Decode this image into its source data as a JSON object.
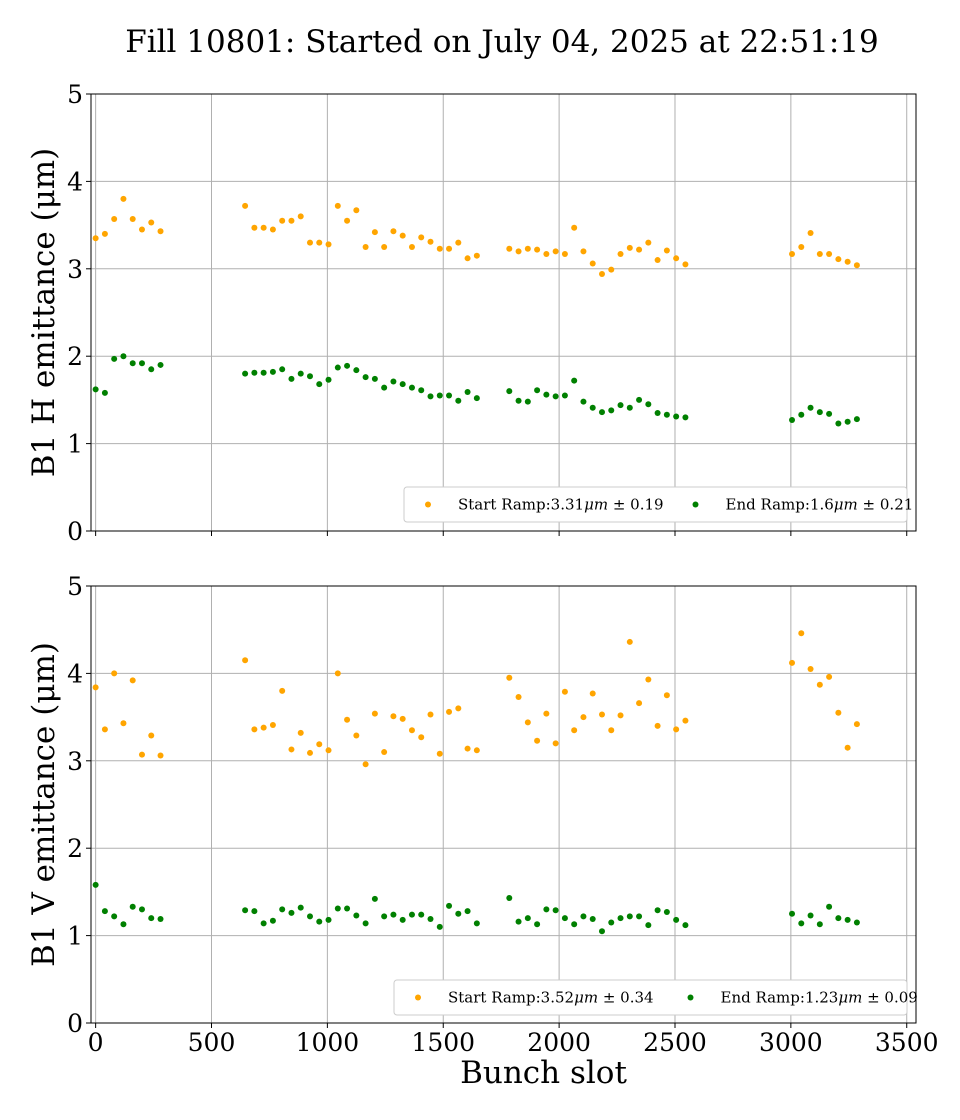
{
  "title": "Fill 10801: Started on July 04, 2025 at 22:51:19",
  "colors": {
    "start": "#ffa500",
    "end": "#008000"
  },
  "chart_data": [
    {
      "type": "scatter",
      "panel": "top",
      "ylabel": "B1 H emittance (μm)",
      "ylim": [
        0,
        5
      ],
      "xlim": [
        -20,
        3540
      ],
      "xticks": [
        0,
        500,
        1000,
        1500,
        2000,
        2500,
        3000,
        3500
      ],
      "yticks": [
        0,
        1,
        2,
        3,
        4,
        5
      ],
      "grid": true,
      "legend_position": "lower-right",
      "series": [
        {
          "name": "Start Ramp:3.31 μm ± 0.19",
          "legend_prefix": "Start Ramp:3.31 ",
          "legend_unit": "μm",
          "legend_suffix": " ± 0.19",
          "color": "#ffa500",
          "x": [
            0,
            40,
            80,
            120,
            160,
            200,
            240,
            280,
            645,
            685,
            725,
            765,
            805,
            845,
            885,
            925,
            965,
            1005,
            1045,
            1085,
            1125,
            1165,
            1205,
            1245,
            1285,
            1325,
            1365,
            1405,
            1445,
            1485,
            1525,
            1565,
            1605,
            1645,
            1785,
            1825,
            1865,
            1905,
            1945,
            1985,
            2025,
            2065,
            2105,
            2145,
            2185,
            2225,
            2265,
            2305,
            2345,
            2385,
            2425,
            2465,
            2505,
            2545,
            3005,
            3045,
            3085,
            3125,
            3165,
            3205,
            3245,
            3285
          ],
          "y": [
            3.35,
            3.4,
            3.57,
            3.8,
            3.57,
            3.45,
            3.53,
            3.43,
            3.72,
            3.47,
            3.47,
            3.45,
            3.55,
            3.55,
            3.6,
            3.3,
            3.3,
            3.28,
            3.72,
            3.55,
            3.67,
            3.25,
            3.42,
            3.25,
            3.43,
            3.38,
            3.25,
            3.36,
            3.31,
            3.23,
            3.23,
            3.3,
            3.12,
            3.15,
            3.23,
            3.2,
            3.23,
            3.22,
            3.17,
            3.2,
            3.17,
            3.47,
            3.2,
            3.06,
            2.94,
            2.99,
            3.17,
            3.24,
            3.22,
            3.3,
            3.1,
            3.21,
            3.12,
            3.05,
            3.17,
            3.25,
            3.41,
            3.17,
            3.17,
            3.11,
            3.08,
            3.04
          ]
        },
        {
          "name": "End Ramp:1.6 μm ± 0.21",
          "legend_prefix": "End Ramp:1.6 ",
          "legend_unit": "μm",
          "legend_suffix": " ± 0.21",
          "color": "#008000",
          "x": [
            0,
            40,
            80,
            120,
            160,
            200,
            240,
            280,
            645,
            685,
            725,
            765,
            805,
            845,
            885,
            925,
            965,
            1005,
            1045,
            1085,
            1125,
            1165,
            1205,
            1245,
            1285,
            1325,
            1365,
            1405,
            1445,
            1485,
            1525,
            1565,
            1605,
            1645,
            1785,
            1825,
            1865,
            1905,
            1945,
            1985,
            2025,
            2065,
            2105,
            2145,
            2185,
            2225,
            2265,
            2305,
            2345,
            2385,
            2425,
            2465,
            2505,
            2545,
            3005,
            3045,
            3085,
            3125,
            3165,
            3205,
            3245,
            3285
          ],
          "y": [
            1.62,
            1.58,
            1.97,
            2.0,
            1.92,
            1.92,
            1.85,
            1.9,
            1.8,
            1.81,
            1.81,
            1.82,
            1.85,
            1.74,
            1.8,
            1.77,
            1.68,
            1.73,
            1.87,
            1.89,
            1.84,
            1.76,
            1.74,
            1.64,
            1.71,
            1.68,
            1.64,
            1.61,
            1.54,
            1.55,
            1.55,
            1.49,
            1.59,
            1.52,
            1.6,
            1.49,
            1.48,
            1.61,
            1.56,
            1.54,
            1.55,
            1.72,
            1.48,
            1.41,
            1.36,
            1.38,
            1.44,
            1.41,
            1.5,
            1.45,
            1.35,
            1.33,
            1.31,
            1.3,
            1.27,
            1.33,
            1.41,
            1.36,
            1.34,
            1.23,
            1.25,
            1.28
          ]
        }
      ]
    },
    {
      "type": "scatter",
      "panel": "bottom",
      "ylabel": "B1 V emittance (μm)",
      "xlabel": "Bunch slot",
      "ylim": [
        0,
        5
      ],
      "xlim": [
        -20,
        3540
      ],
      "xticks": [
        0,
        500,
        1000,
        1500,
        2000,
        2500,
        3000,
        3500
      ],
      "yticks": [
        0,
        1,
        2,
        3,
        4,
        5
      ],
      "grid": true,
      "legend_position": "lower-right",
      "series": [
        {
          "name": "Start Ramp:3.52 μm ± 0.34",
          "legend_prefix": "Start Ramp:3.52 ",
          "legend_unit": "μm",
          "legend_suffix": " ± 0.34",
          "color": "#ffa500",
          "x": [
            0,
            40,
            80,
            120,
            160,
            200,
            240,
            280,
            645,
            685,
            725,
            765,
            805,
            845,
            885,
            925,
            965,
            1005,
            1045,
            1085,
            1125,
            1165,
            1205,
            1245,
            1285,
            1325,
            1365,
            1405,
            1445,
            1485,
            1525,
            1565,
            1605,
            1645,
            1785,
            1825,
            1865,
            1905,
            1945,
            1985,
            2025,
            2065,
            2105,
            2145,
            2185,
            2225,
            2265,
            2305,
            2345,
            2385,
            2425,
            2465,
            2505,
            2545,
            3005,
            3045,
            3085,
            3125,
            3165,
            3205,
            3245,
            3285
          ],
          "y": [
            3.84,
            3.36,
            4.0,
            3.43,
            3.92,
            3.07,
            3.29,
            3.06,
            4.15,
            3.36,
            3.38,
            3.41,
            3.8,
            3.13,
            3.32,
            3.09,
            3.19,
            3.12,
            4.0,
            3.47,
            3.29,
            2.96,
            3.54,
            3.1,
            3.51,
            3.48,
            3.35,
            3.27,
            3.53,
            3.08,
            3.56,
            3.6,
            3.14,
            3.12,
            3.95,
            3.73,
            3.44,
            3.23,
            3.54,
            3.2,
            3.79,
            3.35,
            3.5,
            3.77,
            3.53,
            3.35,
            3.52,
            4.36,
            3.66,
            3.93,
            3.4,
            3.75,
            3.36,
            3.46,
            4.12,
            4.46,
            4.05,
            3.87,
            3.96,
            3.55,
            3.15,
            3.42
          ]
        },
        {
          "name": "End Ramp:1.23 μm ± 0.09",
          "legend_prefix": "End Ramp:1.23 ",
          "legend_unit": "μm",
          "legend_suffix": " ± 0.09",
          "color": "#008000",
          "x": [
            0,
            40,
            80,
            120,
            160,
            200,
            240,
            280,
            645,
            685,
            725,
            765,
            805,
            845,
            885,
            925,
            965,
            1005,
            1045,
            1085,
            1125,
            1165,
            1205,
            1245,
            1285,
            1325,
            1365,
            1405,
            1445,
            1485,
            1525,
            1565,
            1605,
            1645,
            1785,
            1825,
            1865,
            1905,
            1945,
            1985,
            2025,
            2065,
            2105,
            2145,
            2185,
            2225,
            2265,
            2305,
            2345,
            2385,
            2425,
            2465,
            2505,
            2545,
            3005,
            3045,
            3085,
            3125,
            3165,
            3205,
            3245,
            3285
          ],
          "y": [
            1.58,
            1.28,
            1.22,
            1.13,
            1.33,
            1.3,
            1.2,
            1.19,
            1.29,
            1.28,
            1.14,
            1.17,
            1.3,
            1.26,
            1.32,
            1.22,
            1.16,
            1.18,
            1.31,
            1.31,
            1.23,
            1.14,
            1.42,
            1.22,
            1.24,
            1.18,
            1.24,
            1.24,
            1.19,
            1.1,
            1.34,
            1.25,
            1.28,
            1.14,
            1.43,
            1.16,
            1.2,
            1.13,
            1.3,
            1.29,
            1.2,
            1.13,
            1.22,
            1.19,
            1.05,
            1.15,
            1.2,
            1.22,
            1.22,
            1.12,
            1.29,
            1.27,
            1.18,
            1.12,
            1.25,
            1.14,
            1.23,
            1.13,
            1.33,
            1.2,
            1.18,
            1.15
          ]
        }
      ]
    }
  ]
}
